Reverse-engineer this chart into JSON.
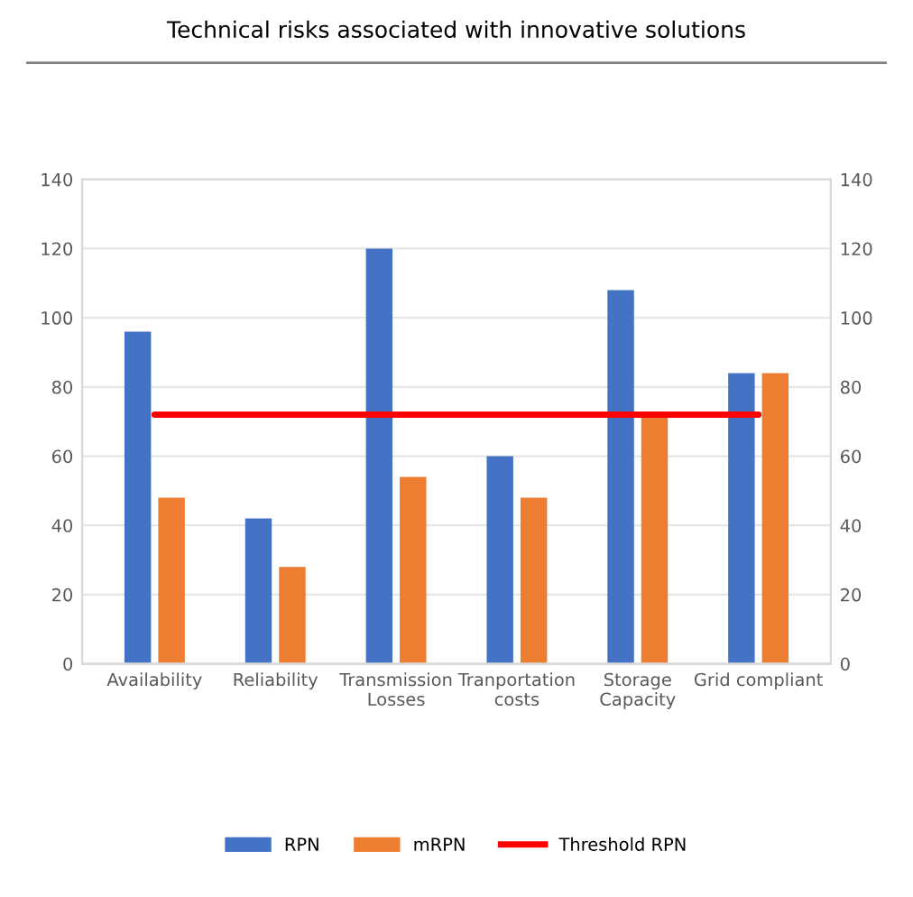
{
  "chart_data": {
    "type": "bar",
    "title": "Technical risks associated with innovative solutions",
    "categories": [
      "Availability",
      "Reliability",
      "Transmission\nLosses",
      "Tranportation\ncosts",
      "Storage\nCapacity",
      "Grid compliant"
    ],
    "series": [
      {
        "name": "RPN",
        "color": "#4472c4",
        "values": [
          96,
          42,
          120,
          60,
          108,
          84
        ]
      },
      {
        "name": "mRPN",
        "color": "#ed7d31",
        "values": [
          48,
          28,
          54,
          48,
          72,
          84
        ]
      },
      {
        "name": "Threshold RPN",
        "color": "#ff0000",
        "type": "line",
        "values": [
          72,
          72,
          72,
          72,
          72,
          72
        ]
      }
    ],
    "ylim": [
      0,
      140
    ],
    "yticks": [
      0,
      20,
      40,
      60,
      80,
      100,
      120,
      140
    ],
    "y2lim": [
      0,
      140
    ],
    "y2ticks": [
      0,
      20,
      40,
      60,
      80,
      100,
      120,
      140
    ],
    "grid": "y",
    "legend": "bottom"
  }
}
